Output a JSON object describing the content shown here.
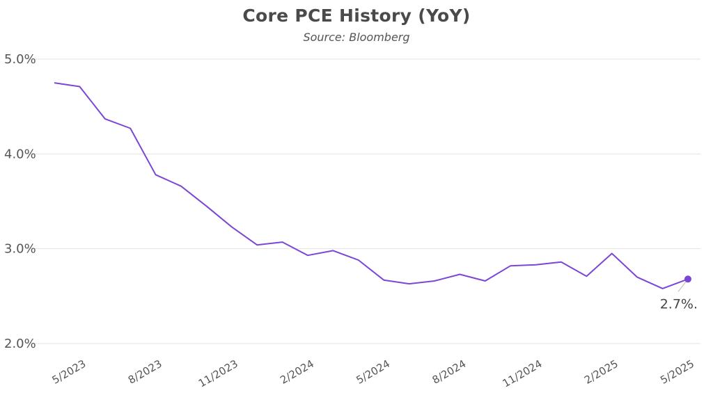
{
  "header": {
    "title": "Core PCE History (YoY)",
    "subtitle": "Source: Bloomberg"
  },
  "colors": {
    "line": "#7b45d6",
    "grid": "#e3e3e3",
    "text": "#555555"
  },
  "chart_data": {
    "type": "line",
    "title": "Core PCE History (YoY)",
    "subtitle": "Source: Bloomberg",
    "xlabel": "",
    "ylabel": "",
    "ylim": [
      2.0,
      5.0
    ],
    "yticks": [
      2.0,
      3.0,
      4.0,
      5.0
    ],
    "ytick_labels": [
      "2.0%",
      "3.0%",
      "4.0%",
      "5.0%"
    ],
    "grid": "horizontal",
    "x_tick_labels": [
      "5/2023",
      "8/2023",
      "11/2023",
      "2/2024",
      "5/2024",
      "8/2024",
      "11/2024",
      "2/2025",
      "5/2025"
    ],
    "x": [
      "4/2023",
      "5/2023",
      "6/2023",
      "7/2023",
      "8/2023",
      "9/2023",
      "10/2023",
      "11/2023",
      "12/2023",
      "1/2024",
      "2/2024",
      "3/2024",
      "4/2024",
      "5/2024",
      "6/2024",
      "7/2024",
      "8/2024",
      "9/2024",
      "10/2024",
      "11/2024",
      "12/2024",
      "1/2025",
      "2/2025",
      "3/2025",
      "4/2025",
      "5/2025"
    ],
    "series": [
      {
        "values": [
          4.75,
          4.71,
          4.37,
          4.27,
          3.78,
          3.66,
          3.45,
          3.23,
          3.04,
          3.07,
          2.93,
          2.98,
          2.88,
          2.67,
          2.63,
          2.66,
          2.73,
          2.66,
          2.82,
          2.83,
          2.86,
          2.71,
          2.95,
          2.7,
          2.58,
          2.68
        ]
      }
    ],
    "annotations": [
      {
        "label": "2.7%.",
        "x": "5/2025",
        "y": 2.68
      }
    ]
  }
}
